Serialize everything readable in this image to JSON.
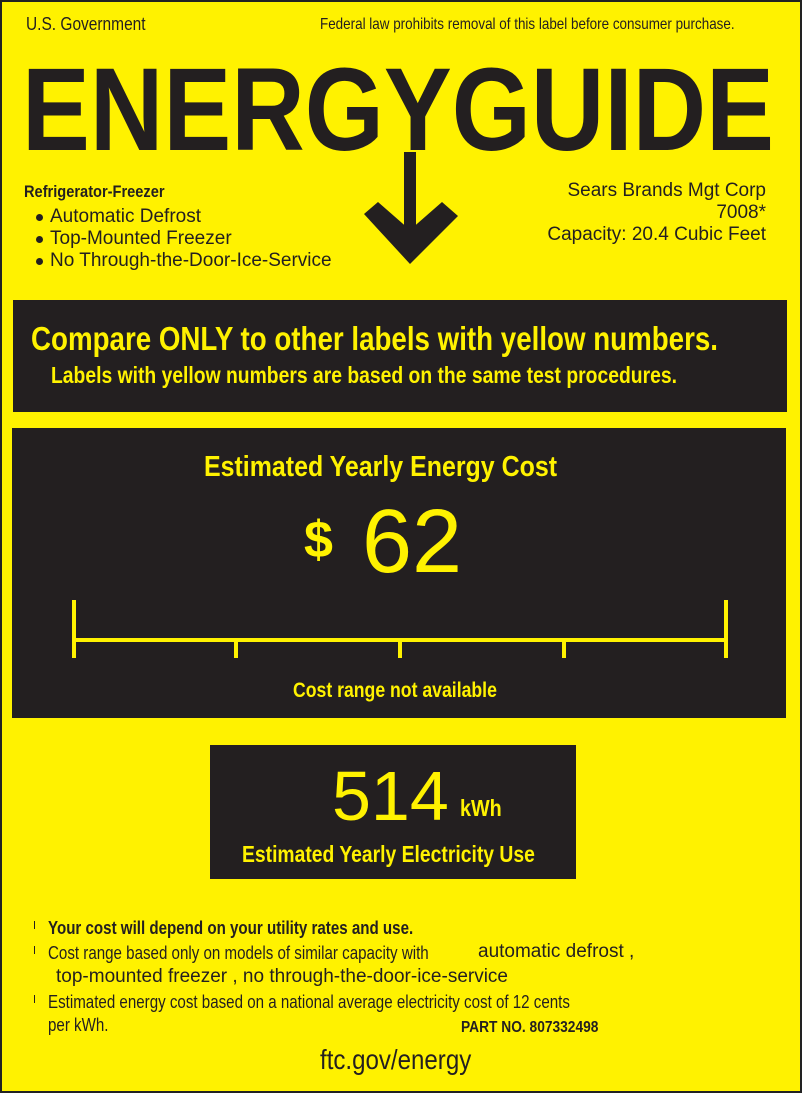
{
  "header": {
    "left": "U.S. Government",
    "right": "Federal law prohibits removal of this label before consumer purchase."
  },
  "logo": {
    "text": "ENERGYGUIDE",
    "icon": "down-arrow-icon"
  },
  "product": {
    "type": "Refrigerator-Freezer",
    "features": [
      "Automatic Defrost",
      "Top-Mounted Freezer",
      "No Through-the-Door-Ice-Service"
    ]
  },
  "manufacturer": {
    "name": "Sears Brands Mgt Corp",
    "model": "7008*",
    "capacity": "Capacity: 20.4 Cubic Feet"
  },
  "compare": {
    "line1": "Compare ONLY to other labels with yellow numbers.",
    "line2": "Labels with yellow numbers are based on the same test procedures."
  },
  "cost": {
    "title": "Estimated Yearly Energy Cost",
    "currency": "$",
    "value": "62",
    "range_note": "Cost range not available"
  },
  "electricity": {
    "value": "514",
    "unit": "kWh",
    "label": "Estimated Yearly Electricity Use"
  },
  "footnotes": {
    "n1": "Your cost will depend on your utility rates and use.",
    "n2a": "Cost range based only on models of similar capacity with",
    "n2b": "automatic defrost ,",
    "n2c": "top-mounted freezer , no through-the-door-ice-service",
    "n3a": "Estimated energy cost based on a national average electricity cost of 12 cents",
    "n3b": "per kWh.",
    "part": "PART NO. 807332498",
    "url": "ftc.gov/energy"
  },
  "colors": {
    "background": "#fff200",
    "ink": "#231f20"
  }
}
